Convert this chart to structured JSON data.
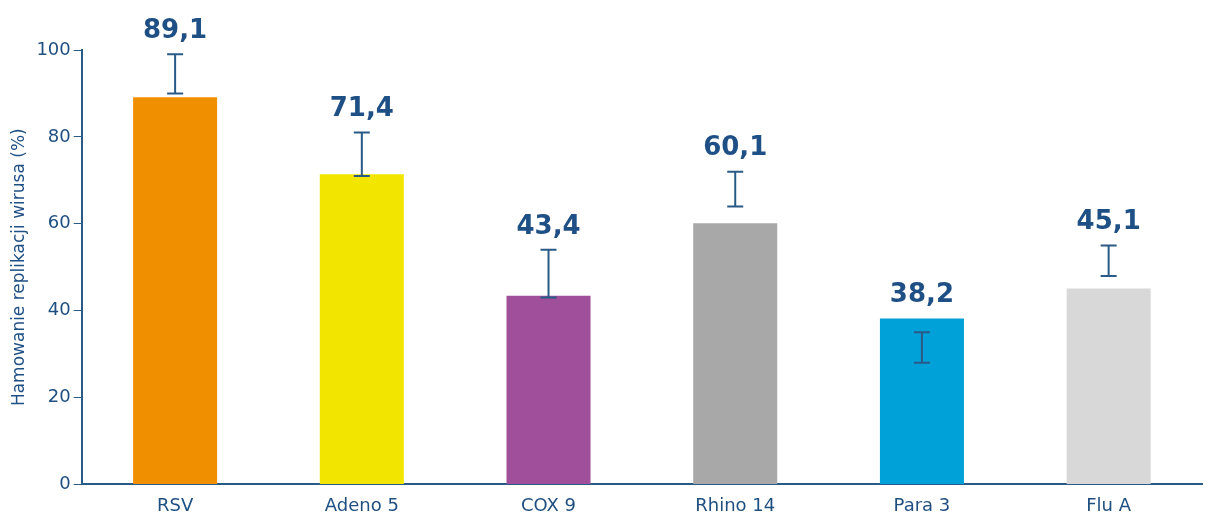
{
  "chart_data": {
    "type": "bar",
    "ylabel": "Hamowanie replikacji wirusa (%)",
    "categories": [
      "RSV",
      "Adeno 5",
      "COX 9",
      "Rhino 14",
      "Para 3",
      "Flu A"
    ],
    "values": [
      89.1,
      71.4,
      43.4,
      60.1,
      38.2,
      45.1
    ],
    "colors": [
      "#f09000",
      "#f2e600",
      "#a0509a",
      "#a8a8a8",
      "#00a0d8",
      "#d8d8d8"
    ],
    "errors": [
      [
        90,
        99
      ],
      [
        71,
        81
      ],
      [
        43,
        54
      ],
      [
        64,
        72
      ],
      [
        28,
        35
      ],
      [
        48,
        55
      ]
    ],
    "value_labels": [
      "89,1",
      "71,4",
      "43,4",
      "60,1",
      "38,2",
      "45,1"
    ],
    "ylim": [
      0,
      100
    ],
    "yticks": [
      0,
      20,
      40,
      60,
      80,
      100
    ],
    "grid": false,
    "legend": false
  }
}
